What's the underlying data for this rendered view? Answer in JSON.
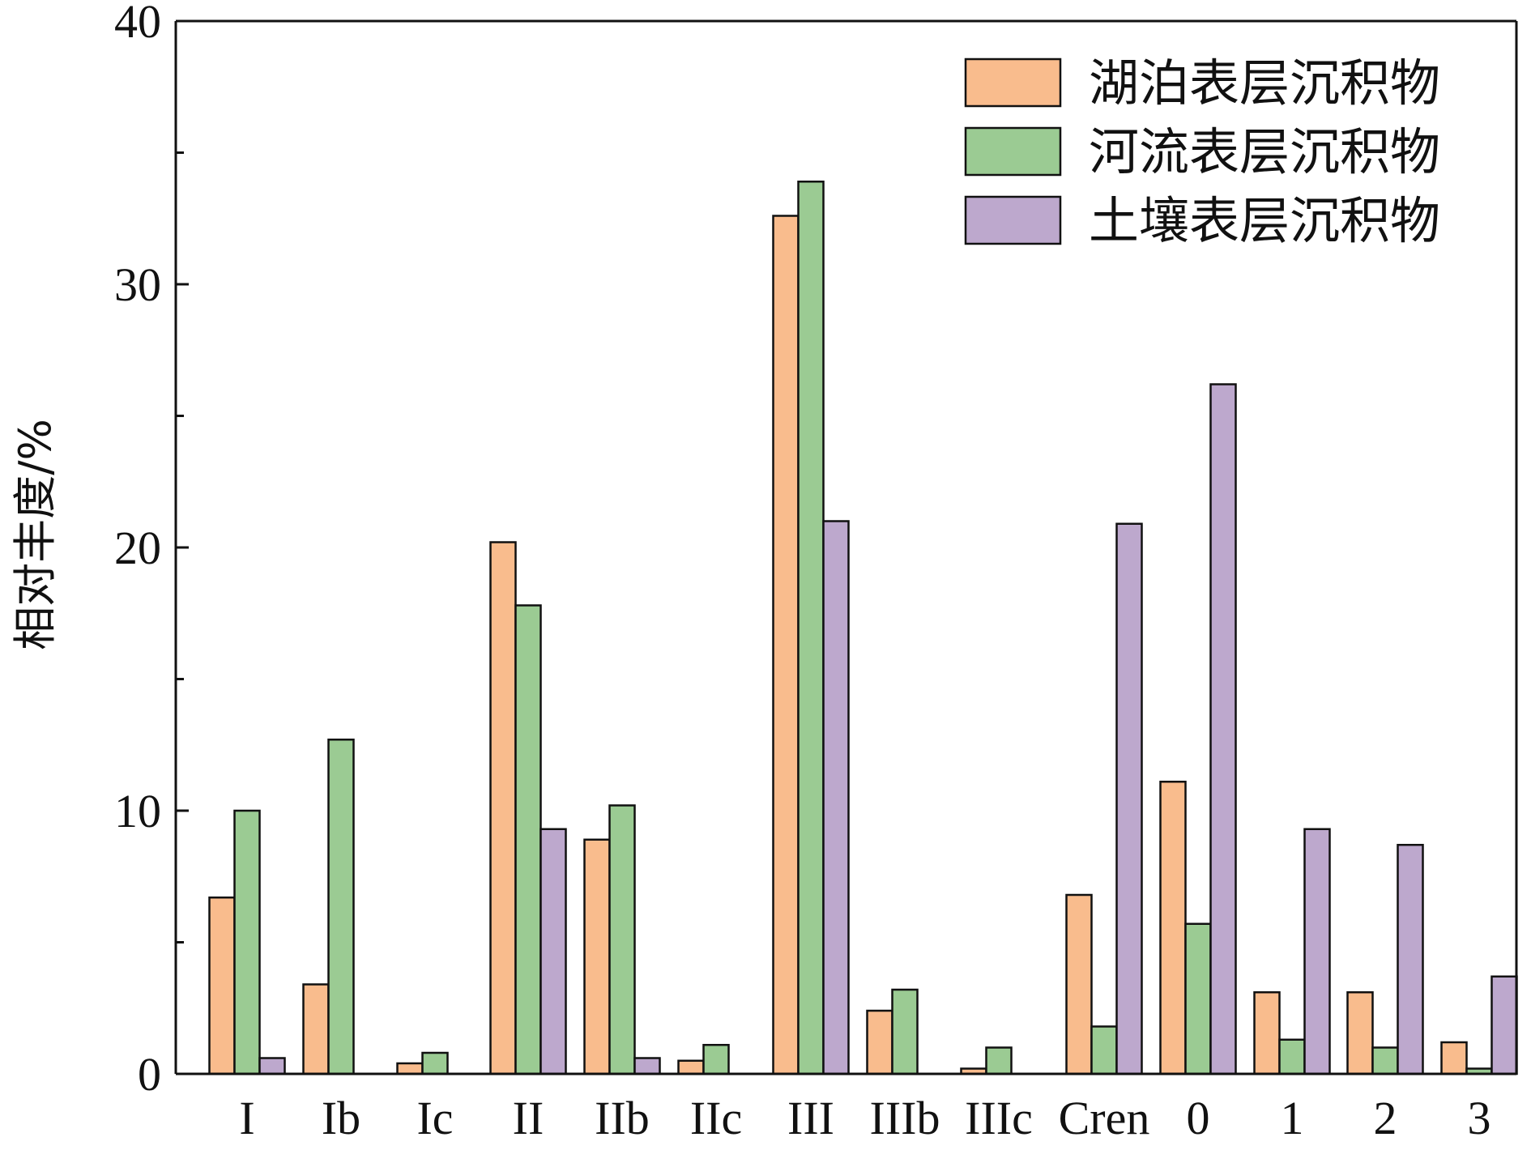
{
  "chart_data": {
    "type": "bar",
    "ylabel": "相对丰度/%",
    "xlabel": "",
    "ylim": [
      0,
      40
    ],
    "yticks": [
      0,
      10,
      20,
      30,
      40
    ],
    "legend_position": "top-right",
    "grid": false,
    "categories": [
      "I",
      "Ib",
      "Ic",
      "II",
      "IIb",
      "IIc",
      "III",
      "IIIb",
      "IIIc",
      "Cren",
      "0",
      "1",
      "2",
      "3"
    ],
    "series": [
      {
        "name": "湖泊表层沉积物",
        "color": "#f9bc8d",
        "values": [
          6.7,
          3.4,
          0.4,
          20.2,
          8.9,
          0.5,
          32.6,
          2.4,
          0.2,
          6.8,
          11.1,
          3.1,
          3.1,
          1.2
        ]
      },
      {
        "name": "河流表层沉积物",
        "color": "#9bcb93",
        "values": [
          10.0,
          12.7,
          0.8,
          17.8,
          10.2,
          1.1,
          33.9,
          3.2,
          1.0,
          1.8,
          5.7,
          1.3,
          1.0,
          0.2
        ]
      },
      {
        "name": "土壤表层沉积物",
        "color": "#bda8cd",
        "values": [
          0.6,
          0.0,
          0.0,
          9.3,
          0.6,
          0.0,
          21.0,
          0.0,
          0.0,
          20.9,
          26.2,
          9.3,
          8.7,
          3.7
        ]
      }
    ]
  }
}
